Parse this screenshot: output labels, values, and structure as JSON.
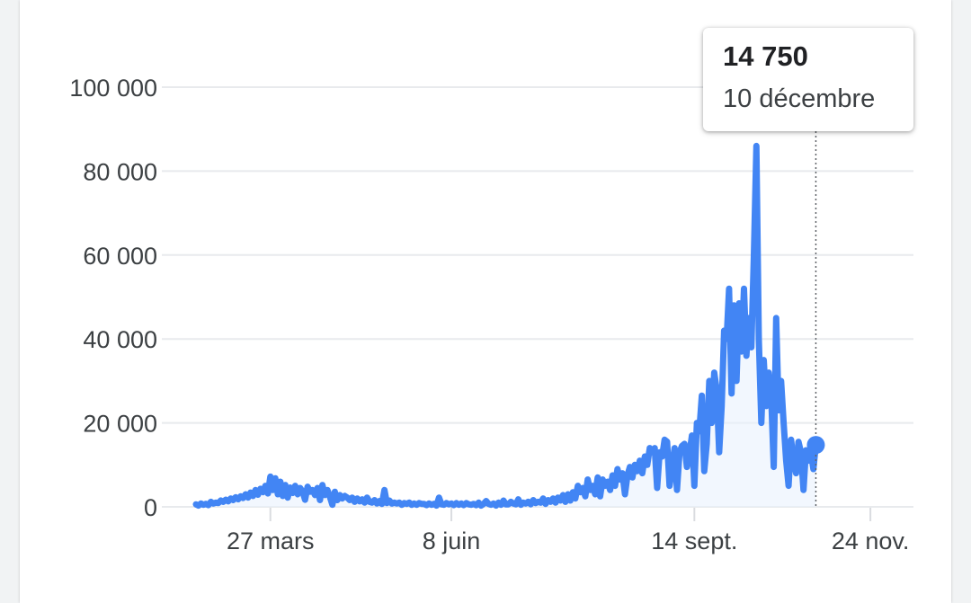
{
  "chart_data": {
    "type": "line",
    "y_ticks": [
      0,
      20000,
      40000,
      60000,
      80000,
      100000
    ],
    "y_tick_labels": [
      "0",
      "20 000",
      "40 000",
      "60 000",
      "80 000",
      "100 000"
    ],
    "ylim": [
      0,
      100000
    ],
    "x_tick_labels": [
      "27 mars",
      "8 juin",
      "14 sept.",
      "24 nov."
    ],
    "x_tick_days": [
      30,
      103,
      201,
      272
    ],
    "xlim": [
      0,
      289
    ],
    "grid": true,
    "line_color": "#4285f4",
    "fill_color": "#e8f0fe",
    "series": [
      {
        "values": [
          600,
          300,
          800,
          500,
          700,
          400,
          1200,
          800,
          1000,
          900,
          1500,
          1200,
          1700,
          1300,
          2000,
          1600,
          2300,
          1800,
          2500,
          2100,
          3000,
          2200,
          3400,
          2600,
          4000,
          2900,
          4300,
          3500,
          5000,
          3200,
          7200,
          4000,
          6800,
          3000,
          6000,
          2600,
          5200,
          2200,
          4600,
          3300,
          5000,
          3000,
          4500,
          3600,
          1700,
          4800,
          3600,
          4000,
          2800,
          4500,
          1600,
          5200,
          2800,
          4000,
          2400,
          500,
          3600,
          1600,
          2800,
          2000,
          2600,
          2200,
          1600,
          2200,
          1200,
          2000,
          1300,
          1800,
          1000,
          2200,
          1200,
          1000,
          1600,
          800,
          1400,
          700,
          4000,
          900,
          1500,
          800,
          1000,
          800,
          1000,
          500,
          900,
          700,
          1000,
          500,
          800,
          500,
          900,
          700,
          700,
          400,
          800,
          500,
          700,
          300,
          2200,
          600,
          500,
          900,
          600,
          800,
          400,
          900,
          500,
          800,
          400,
          900,
          600,
          500,
          700,
          400,
          1000,
          300,
          700,
          1400,
          700,
          500,
          800,
          300,
          1000,
          500,
          1500,
          600,
          600,
          1200,
          800,
          600,
          1800,
          500,
          1000,
          800,
          1200,
          600,
          1600,
          900,
          1200,
          1000,
          2000,
          700,
          1600,
          1200,
          2000,
          1000,
          2200,
          1500,
          2800,
          1200,
          3000,
          1500,
          3500,
          2000,
          5000,
          3500,
          4500,
          2500,
          6500,
          4000,
          5000,
          3000,
          7000,
          2500,
          6500,
          5000,
          6000,
          4000,
          7500,
          5000,
          9000,
          6500,
          8000,
          3000,
          7500,
          9500,
          7000,
          10000,
          8500,
          11000,
          8000,
          12000,
          10000,
          14000,
          13000,
          14000,
          4500,
          13000,
          12000,
          16000,
          15500,
          5000,
          9000,
          14000,
          4000,
          13000,
          14500,
          15000,
          9500,
          12500,
          17000,
          5000,
          20000,
          18000,
          26500,
          8500,
          15000,
          30000,
          20000,
          32000,
          28000,
          13000,
          24000,
          42000,
          40000,
          52000,
          27000,
          48000,
          30000,
          48500,
          37000,
          52000,
          36000,
          45000,
          38000,
          60000,
          86000,
          40000,
          20000,
          35000,
          24000,
          32000,
          26000,
          9500,
          45000,
          23000,
          30000,
          20000,
          11000,
          5000,
          16000,
          11000,
          8000,
          15500,
          13000,
          4000,
          13500,
          11000,
          13000,
          9000,
          14750
        ]
      }
    ],
    "tooltip": {
      "value": "14 750",
      "date": "10 décembre"
    }
  }
}
